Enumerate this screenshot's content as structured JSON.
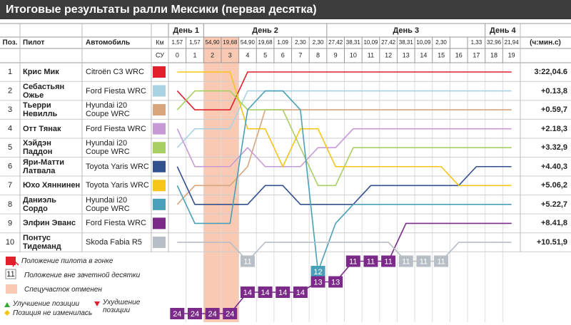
{
  "title": "Итоговые результаты ралли Мексики (первая десятка)",
  "header": {
    "pos": "Поз.",
    "driver": "Пилот",
    "car": "Автомобиль",
    "km": "Км",
    "stage": "СУ",
    "time": "(ч:мин.с)"
  },
  "days": [
    {
      "label": "День 1",
      "stages": [
        {
          "num": 0,
          "km": "1,57"
        },
        {
          "num": 1,
          "km": "1,57"
        }
      ]
    },
    {
      "label": "День 2",
      "stages": [
        {
          "num": 2,
          "km": "54,90",
          "cancelled": true
        },
        {
          "num": 3,
          "km": "19,68",
          "cancelled": true
        },
        {
          "num": 4,
          "km": "54,90"
        },
        {
          "num": 5,
          "km": "19,68"
        },
        {
          "num": 6,
          "km": "1,09"
        },
        {
          "num": 7,
          "km": "2,30"
        },
        {
          "num": 8,
          "km": "2,30"
        }
      ]
    },
    {
      "label": "День 3",
      "stages": [
        {
          "num": 9,
          "km": "27,42"
        },
        {
          "num": 10,
          "km": "38,31"
        },
        {
          "num": 11,
          "km": "10,09"
        },
        {
          "num": 12,
          "km": "27,42"
        },
        {
          "num": 13,
          "km": "38,31"
        },
        {
          "num": 14,
          "km": "10,09"
        },
        {
          "num": 15,
          "km": "2,30"
        },
        {
          "num": 16,
          "km": null
        },
        {
          "num": 17,
          "km": "1,33"
        }
      ]
    },
    {
      "label": "День 4",
      "stages": [
        {
          "num": 18,
          "km": "32,96"
        },
        {
          "num": 19,
          "km": "21,94"
        }
      ]
    }
  ],
  "drivers": [
    {
      "pos": 1,
      "name": "Крис Мик",
      "car": "Citroën C3 WRC",
      "gap": "3:22,04.6",
      "color": "#e2202c",
      "positions": [
        2,
        3,
        3,
        3,
        1,
        1,
        1,
        1,
        1,
        1,
        1,
        1,
        1,
        1,
        1,
        1,
        1,
        1,
        1,
        1
      ]
    },
    {
      "pos": 2,
      "name": "Себастьян Ожье",
      "car": "Ford Fiesta WRC",
      "gap": "+0.13,8",
      "color": "#a9d3e3",
      "positions": [
        5,
        4,
        4,
        4,
        2,
        2,
        2,
        2,
        2,
        2,
        2,
        2,
        2,
        2,
        2,
        2,
        2,
        2,
        2,
        2
      ]
    },
    {
      "pos": 3,
      "name": "Тьерри Невилль",
      "car": "Hyundai i20 Coupe WRC",
      "gap": "+0.59,7",
      "color": "#d8a57c",
      "positions": [
        8,
        7,
        7,
        7,
        6,
        3,
        3,
        3,
        3,
        3,
        3,
        3,
        3,
        3,
        3,
        3,
        3,
        3,
        3,
        3
      ]
    },
    {
      "pos": 4,
      "name": "Отт Тянак",
      "car": "Ford Fiesta WRC",
      "gap": "+2.18,3",
      "color": "#c79ad6",
      "positions": [
        4,
        6,
        6,
        6,
        5,
        6,
        6,
        6,
        5,
        5,
        4,
        4,
        4,
        4,
        4,
        4,
        4,
        4,
        4,
        4
      ]
    },
    {
      "pos": 5,
      "name": "Хэйдэн Паддон",
      "car": "Hyundai i20 Coupe WRC",
      "gap": "+3.32,9",
      "color": "#a8cf62",
      "positions": [
        3,
        2,
        2,
        2,
        3,
        3,
        3,
        5,
        7,
        7,
        5,
        5,
        5,
        5,
        5,
        5,
        5,
        5,
        5,
        5
      ]
    },
    {
      "pos": 6,
      "name": "Яри-Матти Латвала",
      "car": "Toyota Yaris WRC",
      "gap": "+4.40,3",
      "color": "#33508f",
      "positions": [
        6,
        8,
        8,
        8,
        8,
        7,
        7,
        8,
        8,
        8,
        8,
        7,
        7,
        7,
        7,
        7,
        7,
        6,
        6,
        6
      ]
    },
    {
      "pos": 7,
      "name": "Юхо Хяннинен",
      "car": "Toyota Yaris WRC",
      "gap": "+5.06,2",
      "color": "#f5c518",
      "positions": [
        1,
        1,
        1,
        1,
        4,
        4,
        6,
        4,
        4,
        6,
        6,
        6,
        6,
        6,
        6,
        6,
        7,
        7,
        7,
        7
      ]
    },
    {
      "pos": 8,
      "name": "Даниэль Сордо",
      "car": "Hyundai i20 Coupe WRC",
      "gap": "+5.22,7",
      "color": "#4aa0b8",
      "positions": [
        7,
        9,
        9,
        9,
        3,
        2,
        2,
        3,
        12,
        9,
        8,
        8,
        8,
        8,
        8,
        8,
        8,
        8,
        8,
        8
      ]
    },
    {
      "pos": 9,
      "name": "Элфин Эванс",
      "car": "Ford Fiesta WRC",
      "gap": "+8.41,8",
      "color": "#7b2a8a",
      "positions": [
        24,
        24,
        24,
        24,
        14,
        14,
        14,
        14,
        13,
        13,
        11,
        11,
        11,
        9,
        9,
        9,
        9,
        9,
        9,
        9
      ]
    },
    {
      "pos": 10,
      "name": "Понтус Тидеманд",
      "car": "Skoda Fabia R5",
      "gap": "+10.51,9",
      "color": "#b8bec6",
      "positions": [
        10,
        10,
        10,
        10,
        11,
        10,
        10,
        10,
        10,
        10,
        10,
        10,
        10,
        11,
        11,
        11,
        10,
        10,
        10,
        10
      ]
    }
  ],
  "legend": {
    "position": "Положение пилота в гонке",
    "outside_sample": "11",
    "outside": "Положение вне зачетной десятки",
    "cancelled": "Спецучасток отменен",
    "up": "Улучшение позиции",
    "down": "Ухудшение позиции",
    "same": "Позиция не изменилась"
  }
}
